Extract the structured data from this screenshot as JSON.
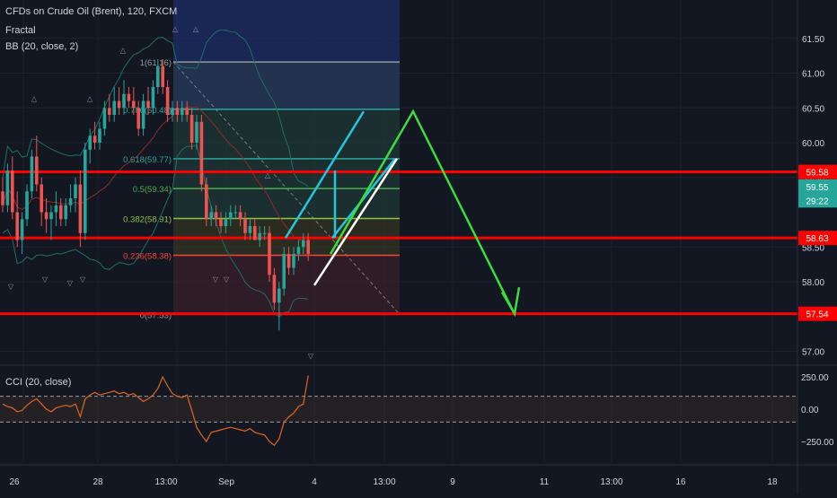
{
  "header": {
    "title": "CFDs on Crude Oil (Brent), 120, FXCM",
    "indicator1": "Fractal",
    "indicator2": "BB (20, close, 2)",
    "cci_label": "CCI (20, close)"
  },
  "colors": {
    "background": "#131722",
    "up": "#26a69a",
    "down": "#ef5350",
    "red_line": "#ff0000",
    "fib_teal": "#26a69a",
    "fib_green": "#4caf50",
    "arrow_green": "#3ddc3d",
    "bb": "#1e6f66",
    "cci": "#e0651f"
  },
  "chart_data": {
    "type": "candlestick",
    "ylim": [
      56.7,
      61.9
    ],
    "price_ticks": [
      {
        "label": "61.50",
        "value": 61.5
      },
      {
        "label": "61.00",
        "value": 61.0
      },
      {
        "label": "60.50",
        "value": 60.5
      },
      {
        "label": "60.00",
        "value": 60.0
      },
      {
        "label": "59.50",
        "value": 59.5
      },
      {
        "label": "58.50",
        "value": 58.5
      },
      {
        "label": "58.00",
        "value": 58.0
      },
      {
        "label": "57.00",
        "value": 57.0
      }
    ],
    "price_labels": [
      {
        "label": "59.58",
        "value": 59.58,
        "color": "#ff0000"
      },
      {
        "label": "59.55",
        "value": 59.37,
        "color": "#26a69a"
      },
      {
        "label": "29:22",
        "value": 59.17,
        "color": "#26a69a"
      },
      {
        "label": "58.63",
        "value": 58.63,
        "color": "#ff0000"
      },
      {
        "label": "57.54",
        "value": 57.54,
        "color": "#ff0000"
      }
    ],
    "x_ticks": [
      "26",
      "28",
      "13:00",
      "Sep",
      "4",
      "13:00",
      "9",
      "11",
      "13:00",
      "16",
      "18"
    ],
    "horizontal_levels": [
      59.58,
      58.63,
      57.54
    ],
    "fib_levels": [
      {
        "label": "1(61.16)",
        "value": 61.16
      },
      {
        "label": "0.786(60.48)",
        "value": 60.48
      },
      {
        "label": "0.618(59.77)",
        "value": 59.77
      },
      {
        "label": "0.5(59.34)",
        "value": 59.34
      },
      {
        "label": "0.382(58.91)",
        "value": 58.91
      },
      {
        "label": "0.236(58.38)",
        "value": 58.38
      },
      {
        "label": "0(57.53)",
        "value": 57.53
      }
    ],
    "candles": [
      [
        59.3,
        59.5,
        59.0,
        59.1
      ],
      [
        59.1,
        59.7,
        59.0,
        59.6
      ],
      [
        59.6,
        59.8,
        58.9,
        59.0
      ],
      [
        59.0,
        59.3,
        58.5,
        58.6
      ],
      [
        58.6,
        59.0,
        58.4,
        58.9
      ],
      [
        58.9,
        59.4,
        58.8,
        59.3
      ],
      [
        59.3,
        59.9,
        59.2,
        59.8
      ],
      [
        59.8,
        60.1,
        59.3,
        59.4
      ],
      [
        59.4,
        59.5,
        58.8,
        59.0
      ],
      [
        59.0,
        59.2,
        58.7,
        58.9
      ],
      [
        58.9,
        59.1,
        58.6,
        59.0
      ],
      [
        59.0,
        59.3,
        58.8,
        59.1
      ],
      [
        59.1,
        59.2,
        58.8,
        58.9
      ],
      [
        58.9,
        59.2,
        58.8,
        59.1
      ],
      [
        59.1,
        59.4,
        59.0,
        59.2
      ],
      [
        59.2,
        59.5,
        59.0,
        59.4
      ],
      [
        59.4,
        59.6,
        58.5,
        58.7
      ],
      [
        58.7,
        60.0,
        58.6,
        59.9
      ],
      [
        59.9,
        60.2,
        59.7,
        60.1
      ],
      [
        60.1,
        60.3,
        59.9,
        60.0
      ],
      [
        60.0,
        60.3,
        59.9,
        60.2
      ],
      [
        60.2,
        60.6,
        60.1,
        60.5
      ],
      [
        60.5,
        60.7,
        60.3,
        60.4
      ],
      [
        60.4,
        60.8,
        60.3,
        60.6
      ],
      [
        60.6,
        60.8,
        60.4,
        60.5
      ],
      [
        60.5,
        60.9,
        60.4,
        60.7
      ],
      [
        60.7,
        60.8,
        60.5,
        60.6
      ],
      [
        60.6,
        60.8,
        60.4,
        60.5
      ],
      [
        60.5,
        60.6,
        60.1,
        60.2
      ],
      [
        60.2,
        60.7,
        60.1,
        60.6
      ],
      [
        60.6,
        60.8,
        60.4,
        60.5
      ],
      [
        60.5,
        60.9,
        60.4,
        60.8
      ],
      [
        60.8,
        61.2,
        60.7,
        61.1
      ],
      [
        61.1,
        61.2,
        60.7,
        60.8
      ],
      [
        60.8,
        60.9,
        60.3,
        60.4
      ],
      [
        60.4,
        60.6,
        60.3,
        60.5
      ],
      [
        60.5,
        60.6,
        60.3,
        60.4
      ],
      [
        60.4,
        60.6,
        60.3,
        60.5
      ],
      [
        60.5,
        60.6,
        60.3,
        60.4
      ],
      [
        60.4,
        60.5,
        59.9,
        60.0
      ],
      [
        60.0,
        60.4,
        59.9,
        60.3
      ],
      [
        60.3,
        60.4,
        59.3,
        59.4
      ],
      [
        59.4,
        59.5,
        58.8,
        58.9
      ],
      [
        58.9,
        59.1,
        58.8,
        59.0
      ],
      [
        59.0,
        59.1,
        58.8,
        58.9
      ],
      [
        58.9,
        59.0,
        58.7,
        58.8
      ],
      [
        58.8,
        59.0,
        58.7,
        58.9
      ],
      [
        58.9,
        59.1,
        58.8,
        59.0
      ],
      [
        59.0,
        59.1,
        58.9,
        59.0
      ],
      [
        59.0,
        59.1,
        58.8,
        58.9
      ],
      [
        58.9,
        59.0,
        58.6,
        58.7
      ],
      [
        58.7,
        58.9,
        58.6,
        58.8
      ],
      [
        58.8,
        58.9,
        58.6,
        58.6
      ],
      [
        58.6,
        58.8,
        58.5,
        58.7
      ],
      [
        58.7,
        58.8,
        58.6,
        58.7
      ],
      [
        58.7,
        58.8,
        58.0,
        58.1
      ],
      [
        58.1,
        58.2,
        57.6,
        57.7
      ],
      [
        57.7,
        58.0,
        57.3,
        57.9
      ],
      [
        57.9,
        58.5,
        57.8,
        58.4
      ],
      [
        58.4,
        58.5,
        58.1,
        58.2
      ],
      [
        58.2,
        58.5,
        58.1,
        58.4
      ],
      [
        58.4,
        58.6,
        58.3,
        58.5
      ],
      [
        58.5,
        58.7,
        58.4,
        58.6
      ],
      [
        58.6,
        58.7,
        58.3,
        58.4
      ]
    ],
    "cci_ticks": [
      {
        "label": "250.00",
        "value": 250
      },
      {
        "label": "0.00",
        "value": 0
      },
      {
        "label": "−250.00",
        "value": -250
      }
    ],
    "cci": [
      40,
      20,
      10,
      -20,
      -10,
      30,
      60,
      80,
      40,
      0,
      -20,
      10,
      20,
      30,
      20,
      40,
      -60,
      80,
      110,
      130,
      110,
      120,
      130,
      140,
      120,
      130,
      110,
      120,
      90,
      60,
      80,
      110,
      160,
      250,
      180,
      120,
      100,
      90,
      110,
      -10,
      -140,
      -200,
      -250,
      -180,
      -170,
      -160,
      -150,
      -140,
      -150,
      -160,
      -170,
      -150,
      -180,
      -190,
      -200,
      -250,
      -280,
      -230,
      -100,
      -60,
      -30,
      20,
      40,
      260
    ]
  }
}
